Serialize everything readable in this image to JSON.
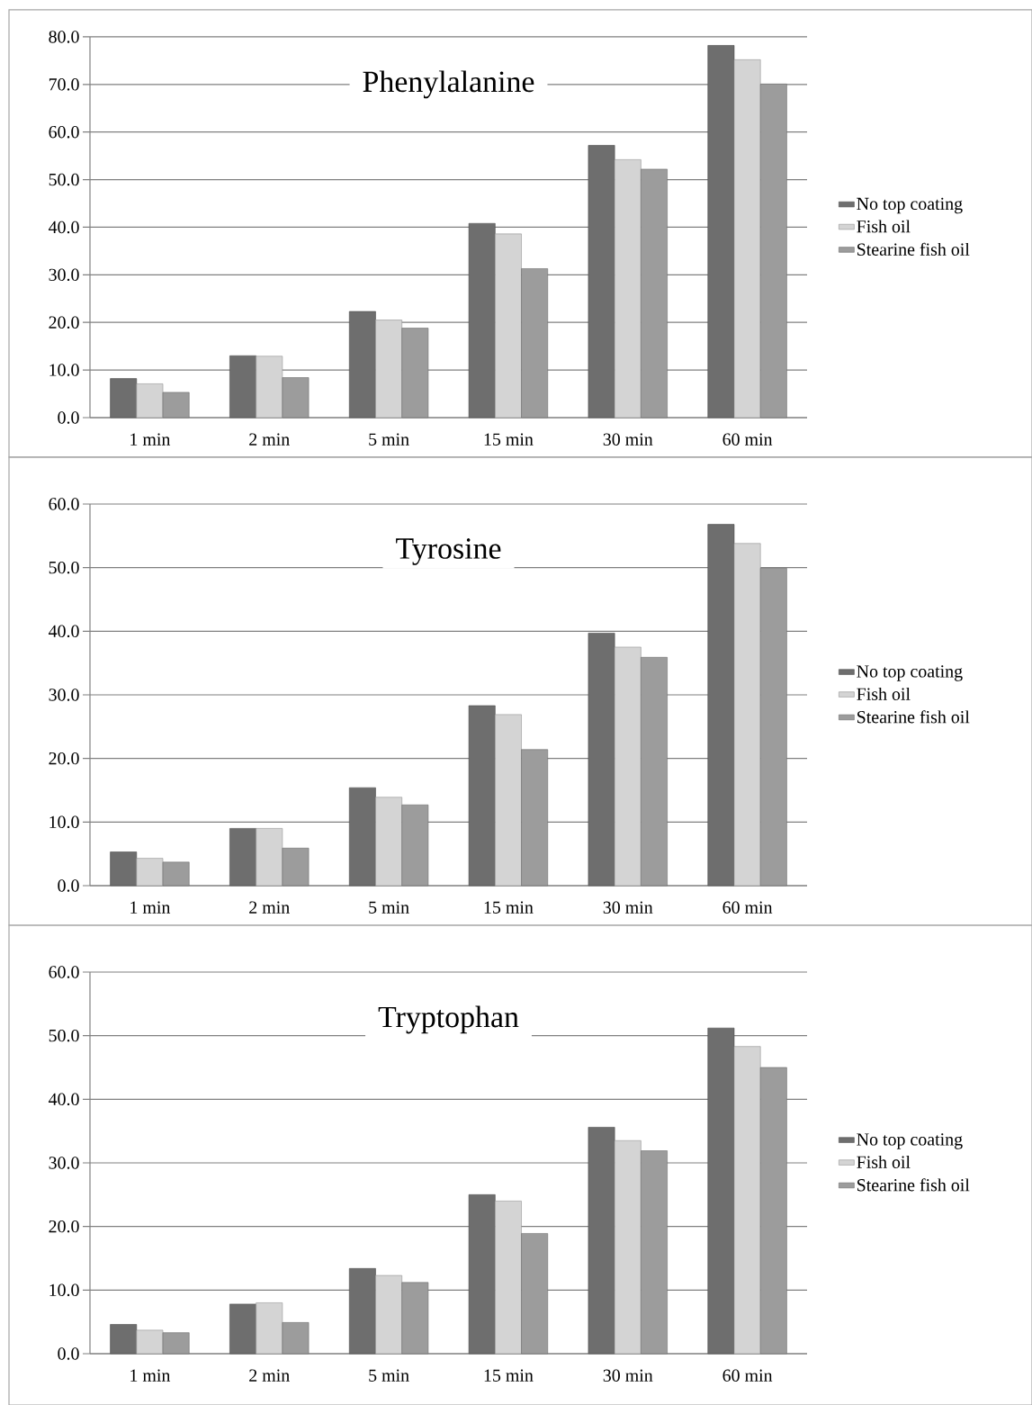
{
  "chart_data": [
    {
      "type": "bar",
      "title": "Phenylalanine",
      "categories": [
        "1 min",
        "2 min",
        "5 min",
        "15 min",
        "30 min",
        "60 min"
      ],
      "series": [
        {
          "name": "No top coating",
          "color": "#6e6e6e",
          "values": [
            8.2,
            13.0,
            22.3,
            40.8,
            57.2,
            78.2
          ]
        },
        {
          "name": "Fish oil",
          "color": "#d4d4d4",
          "values": [
            7.1,
            12.9,
            20.5,
            38.6,
            54.2,
            75.2
          ]
        },
        {
          "name": "Stearine fish oil",
          "color": "#9c9c9c",
          "values": [
            5.3,
            8.4,
            18.8,
            31.3,
            52.2,
            70.1
          ]
        }
      ],
      "ylim": [
        0,
        80
      ],
      "yticks": [
        {
          "value": 0,
          "label": "0.0"
        },
        {
          "value": 10,
          "label": "10.0"
        },
        {
          "value": 20,
          "label": "20.0"
        },
        {
          "value": 30,
          "label": "30.0"
        },
        {
          "value": 40,
          "label": "40.0"
        },
        {
          "value": 50,
          "label": "50.0"
        },
        {
          "value": 60,
          "label": "60.0"
        },
        {
          "value": 70,
          "label": "70.0"
        },
        {
          "value": 80,
          "label": "80.0"
        }
      ],
      "grid": "y",
      "legend": "right"
    },
    {
      "type": "bar",
      "title": "Tyrosine",
      "categories": [
        "1 min",
        "2 min",
        "5 min",
        "15 min",
        "30 min",
        "60 min"
      ],
      "series": [
        {
          "name": "No top coating",
          "color": "#6e6e6e",
          "values": [
            5.3,
            9.0,
            15.4,
            28.3,
            39.7,
            56.8
          ]
        },
        {
          "name": "Fish oil",
          "color": "#d4d4d4",
          "values": [
            4.3,
            9.0,
            13.9,
            26.9,
            37.5,
            53.8
          ]
        },
        {
          "name": "Stearine fish oil",
          "color": "#9c9c9c",
          "values": [
            3.7,
            5.9,
            12.7,
            21.4,
            35.9,
            49.9
          ]
        }
      ],
      "ylim": [
        0,
        60
      ],
      "yticks": [
        {
          "value": 0,
          "label": "0.0"
        },
        {
          "value": 10,
          "label": "10.0"
        },
        {
          "value": 20,
          "label": "20.0"
        },
        {
          "value": 30,
          "label": "30.0"
        },
        {
          "value": 40,
          "label": "40.0"
        },
        {
          "value": 50,
          "label": "50.0"
        },
        {
          "value": 60,
          "label": "60.0"
        }
      ],
      "grid": "y",
      "legend": "right"
    },
    {
      "type": "bar",
      "title": "Tryptophan",
      "categories": [
        "1 min",
        "2 min",
        "5 min",
        "15 min",
        "30 min",
        "60 min"
      ],
      "series": [
        {
          "name": "No top coating",
          "color": "#6e6e6e",
          "values": [
            4.6,
            7.8,
            13.4,
            25.0,
            35.6,
            51.2
          ]
        },
        {
          "name": "Fish oil",
          "color": "#d4d4d4",
          "values": [
            3.7,
            8.0,
            12.3,
            24.0,
            33.5,
            48.3
          ]
        },
        {
          "name": "Stearine fish oil",
          "color": "#9c9c9c",
          "values": [
            3.3,
            4.9,
            11.2,
            18.9,
            31.9,
            45.0
          ]
        }
      ],
      "ylim": [
        0,
        60
      ],
      "yticks": [
        {
          "value": 0,
          "label": "0.0"
        },
        {
          "value": 10,
          "label": "10.0"
        },
        {
          "value": 20,
          "label": "20.0"
        },
        {
          "value": 30,
          "label": "30.0"
        },
        {
          "value": 40,
          "label": "40.0"
        },
        {
          "value": 50,
          "label": "50.0"
        },
        {
          "value": 60,
          "label": "60.0"
        }
      ],
      "grid": "y",
      "legend": "right"
    }
  ]
}
